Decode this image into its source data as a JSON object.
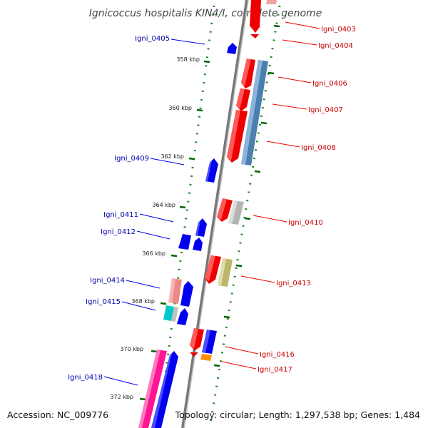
{
  "title": "Ignicoccus hospitalis KIN4/I, complete genome",
  "footer": {
    "accession": "Accession: NC_009776",
    "summary": "Topology: circular; Length: 1,297,538 bp; Genes: 1,484"
  },
  "colors": {
    "forward": "#ff0000",
    "reverse": "#0000ff",
    "steel": "#4682b4",
    "salmon": "#ee8888",
    "grey": "#b4b4b4",
    "olive": "#bdb76b",
    "cyan": "#00cccc",
    "pink": "#ff1493",
    "orange": "#ff8c00",
    "tick": "#006400",
    "backbone": "#808080"
  },
  "tick_labels": [
    "358 kbp",
    "360 kbp",
    "362 kbp",
    "364 kbp",
    "366 kbp",
    "368 kbp",
    "370 kbp",
    "372 kbp"
  ],
  "genes_right": [
    "Igni_0403",
    "Igni_0404",
    "Igni_0406",
    "Igni_0407",
    "Igni_0408",
    "Igni_0410",
    "Igni_0413",
    "Igni_0416",
    "Igni_0417"
  ],
  "genes_left": [
    "Igni_0405",
    "Igni_0409",
    "Igni_0411",
    "Igni_0412",
    "Igni_0414",
    "Igni_0415",
    "Igni_0418"
  ]
}
